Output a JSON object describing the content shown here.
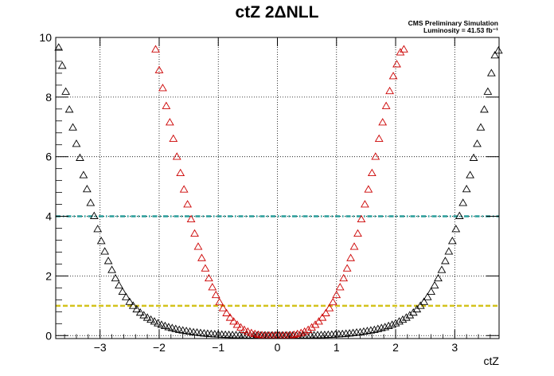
{
  "chart_data": {
    "type": "scatter",
    "title": "ctZ 2ΔNLL",
    "annotations": [
      "CMS Preliminary Simulation",
      "Luminosity = 41.53 fb⁻¹"
    ],
    "xlabel": "ctZ",
    "ylabel": "",
    "xlim": [
      -3.75,
      3.75
    ],
    "ylim": [
      -0.1,
      10
    ],
    "x_ticks": [
      -3,
      -2,
      -1,
      0,
      1,
      2,
      3
    ],
    "x_tick_labels": [
      "−3",
      "−2",
      "−1",
      "0",
      "1",
      "2",
      "3"
    ],
    "y_ticks": [
      0,
      2,
      4,
      6,
      8,
      10
    ],
    "y_tick_labels": [
      "0",
      "2",
      "4",
      "6",
      "8",
      "10"
    ],
    "grid": true,
    "reference_lines": [
      {
        "y": 4,
        "color": "#2a9d9a",
        "style": "dash-dot"
      },
      {
        "y": 1,
        "color": "#d4c21c",
        "style": "dashed"
      }
    ],
    "series": [
      {
        "color": "#000000",
        "marker": "open-triangle",
        "x": [
          -3.7,
          -3.64,
          -3.58,
          -3.52,
          -3.46,
          -3.4,
          -3.34,
          -3.28,
          -3.22,
          -3.16,
          -3.1,
          -3.04,
          -2.98,
          -2.92,
          -2.86,
          -2.8,
          -2.74,
          -2.68,
          -2.62,
          -2.56,
          -2.5,
          -2.44,
          -2.38,
          -2.32,
          -2.26,
          -2.2,
          -2.14,
          -2.08,
          -2.02,
          -1.96,
          -1.9,
          -1.84,
          -1.78,
          -1.72,
          -1.66,
          -1.6,
          -1.54,
          -1.48,
          -1.42,
          -1.36,
          -1.3,
          -1.24,
          -1.18,
          -1.12,
          -1.06,
          -1.0,
          -0.94,
          -0.88,
          -0.82,
          -0.76,
          -0.7,
          -0.64,
          -0.58,
          -0.52,
          -0.46,
          -0.4,
          -0.34,
          -0.28,
          -0.22,
          -0.16,
          -0.1,
          -0.04,
          0.02,
          0.08,
          0.14,
          0.2,
          0.26,
          0.32,
          0.38,
          0.44,
          0.5,
          0.56,
          0.62,
          0.68,
          0.74,
          0.8,
          0.86,
          0.92,
          0.98,
          1.04,
          1.1,
          1.16,
          1.22,
          1.28,
          1.34,
          1.4,
          1.46,
          1.52,
          1.58,
          1.64,
          1.7,
          1.76,
          1.82,
          1.88,
          1.94,
          2.0,
          2.06,
          2.12,
          2.18,
          2.24,
          2.3,
          2.36,
          2.42,
          2.48,
          2.54,
          2.6,
          2.66,
          2.72,
          2.78,
          2.84,
          2.9,
          2.96,
          3.02,
          3.08,
          3.14,
          3.2,
          3.26,
          3.32,
          3.38,
          3.44,
          3.5,
          3.56,
          3.62,
          3.68,
          3.74
        ],
        "y": [
          9.66,
          9.05,
          8.18,
          7.58,
          6.98,
          6.43,
          5.96,
          5.38,
          4.91,
          4.45,
          4.01,
          3.57,
          3.17,
          2.82,
          2.5,
          2.2,
          1.92,
          1.68,
          1.47,
          1.29,
          1.13,
          1.0,
          0.88,
          0.77,
          0.68,
          0.6,
          0.53,
          0.47,
          0.41,
          0.36,
          0.32,
          0.28,
          0.25,
          0.22,
          0.19,
          0.17,
          0.15,
          0.13,
          0.11,
          0.1,
          0.085,
          0.072,
          0.061,
          0.051,
          0.043,
          0.036,
          0.03,
          0.025,
          0.02,
          0.016,
          0.013,
          0.01,
          0.008,
          0.006,
          0.004,
          0.003,
          0.002,
          0.001,
          0.0,
          0.0,
          0.0,
          0.0,
          0.0,
          0.0,
          0.0,
          0.0,
          0.001,
          0.002,
          0.003,
          0.004,
          0.006,
          0.008,
          0.01,
          0.013,
          0.016,
          0.02,
          0.025,
          0.03,
          0.036,
          0.043,
          0.051,
          0.061,
          0.072,
          0.085,
          0.1,
          0.11,
          0.13,
          0.15,
          0.17,
          0.19,
          0.22,
          0.25,
          0.28,
          0.32,
          0.36,
          0.41,
          0.47,
          0.53,
          0.6,
          0.68,
          0.77,
          0.88,
          1.0,
          1.13,
          1.29,
          1.47,
          1.68,
          1.92,
          2.2,
          2.5,
          2.82,
          3.17,
          3.57,
          4.01,
          4.45,
          4.91,
          5.38,
          5.96,
          6.43,
          6.98,
          7.58,
          8.18,
          8.8,
          9.4,
          9.56
        ]
      },
      {
        "color": "#cc0000",
        "marker": "open-triangle",
        "x": [
          -2.06,
          -2.0,
          -1.94,
          -1.88,
          -1.82,
          -1.76,
          -1.7,
          -1.64,
          -1.58,
          -1.52,
          -1.46,
          -1.4,
          -1.34,
          -1.28,
          -1.22,
          -1.16,
          -1.1,
          -1.04,
          -0.98,
          -0.92,
          -0.86,
          -0.8,
          -0.74,
          -0.68,
          -0.62,
          -0.56,
          -0.5,
          -0.44,
          -0.38,
          -0.32,
          -0.26,
          -0.2,
          -0.14,
          -0.08,
          -0.02,
          0.04,
          0.1,
          0.16,
          0.22,
          0.28,
          0.34,
          0.4,
          0.46,
          0.52,
          0.58,
          0.64,
          0.7,
          0.76,
          0.82,
          0.88,
          0.94,
          1.0,
          1.06,
          1.12,
          1.18,
          1.24,
          1.3,
          1.36,
          1.42,
          1.48,
          1.54,
          1.6,
          1.66,
          1.72,
          1.78,
          1.84,
          1.9,
          1.96,
          2.02,
          2.08,
          2.14
        ],
        "y": [
          9.6,
          8.9,
          8.3,
          7.7,
          7.15,
          6.6,
          6.0,
          5.45,
          4.9,
          4.4,
          3.9,
          3.42,
          2.98,
          2.6,
          2.25,
          1.92,
          1.62,
          1.36,
          1.12,
          0.92,
          0.75,
          0.6,
          0.47,
          0.36,
          0.27,
          0.19,
          0.13,
          0.085,
          0.05,
          0.025,
          0.01,
          0.003,
          0.0,
          0.0,
          0.0,
          0.0,
          0.0,
          0.003,
          0.01,
          0.025,
          0.05,
          0.085,
          0.13,
          0.19,
          0.27,
          0.36,
          0.47,
          0.6,
          0.75,
          0.92,
          1.12,
          1.36,
          1.62,
          1.92,
          2.25,
          2.6,
          2.98,
          3.42,
          3.9,
          4.4,
          4.9,
          5.45,
          6.0,
          6.6,
          7.15,
          7.7,
          8.2,
          8.7,
          9.1,
          9.5,
          9.6
        ]
      }
    ]
  }
}
